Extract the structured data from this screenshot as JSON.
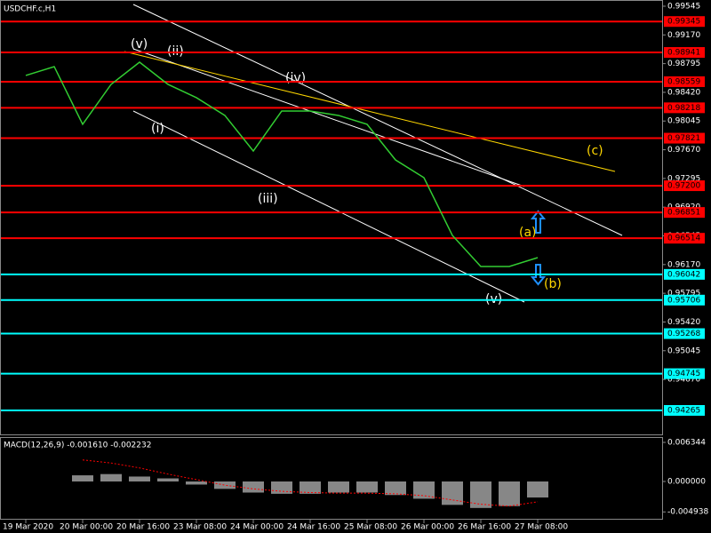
{
  "chart_data": [
    {
      "type": "line",
      "title": "USDCHF.c,H1",
      "categories": [
        "19 Mar 2020",
        null,
        "20 Mar 00:00",
        null,
        "20 Mar 16:00",
        null,
        "23 Mar 08:00",
        null,
        "24 Mar 00:00",
        null,
        "24 Mar 16:00",
        null,
        "25 Mar 08:00",
        null,
        "26 Mar 00:00",
        null,
        "26 Mar 16:00",
        null,
        "27 Mar 08:00"
      ],
      "values": [
        0.9864,
        0.98756,
        0.98002,
        0.98524,
        0.98814,
        0.98524,
        0.9835,
        0.98118,
        0.97653,
        0.98176,
        0.98176,
        0.98118,
        0.98002,
        0.97537,
        0.97305,
        0.96551,
        0.96145,
        0.96145,
        0.96261
      ],
      "color": "#32cd32",
      "ylim": [
        0.9394,
        0.99626
      ],
      "yticks": [
        {
          "value": 0.99545,
          "label": "0.99545"
        },
        {
          "value": 0.9917,
          "label": "0.99170"
        },
        {
          "value": 0.98795,
          "label": "0.98795"
        },
        {
          "value": 0.9842,
          "label": "0.98420"
        },
        {
          "value": 0.98045,
          "label": "0.98045"
        },
        {
          "value": 0.9767,
          "label": "0.97670"
        },
        {
          "value": 0.97295,
          "label": "0.97295"
        },
        {
          "value": 0.9692,
          "label": "0.96920"
        },
        {
          "value": 0.96545,
          "label": "0.96545"
        },
        {
          "value": 0.9617,
          "label": "0.96170"
        },
        {
          "value": 0.95795,
          "label": "0.95795"
        },
        {
          "value": 0.9542,
          "label": "0.95420"
        },
        {
          "value": 0.95045,
          "label": "0.95045"
        },
        {
          "value": 0.9467,
          "label": "0.94670"
        }
      ],
      "level_groups": [
        {
          "color": "#ff0000",
          "levels": [
            {
              "value": 0.99345,
              "label": "0.99345"
            },
            {
              "value": 0.98941,
              "label": "0.98941"
            },
            {
              "value": 0.98559,
              "label": "0.98559"
            },
            {
              "value": 0.98218,
              "label": "0.98218"
            },
            {
              "value": 0.97821,
              "label": "0.97821"
            },
            {
              "value": 0.972,
              "label": "0.97200"
            },
            {
              "value": 0.96851,
              "label": "0.96851"
            },
            {
              "value": 0.96514,
              "label": "0.96514"
            }
          ]
        },
        {
          "color": "#00ffff",
          "levels": [
            {
              "value": 0.96042,
              "label": "0.96042"
            },
            {
              "value": 0.95706,
              "label": "0.95706"
            },
            {
              "value": 0.95268,
              "label": "0.95268"
            },
            {
              "value": 0.94745,
              "label": "0.94745"
            },
            {
              "value": 0.94265,
              "label": "0.94265"
            }
          ]
        }
      ],
      "annotations": [
        "(v)",
        "(ii)",
        "(iv)",
        "(i)",
        "(iii)",
        "(v)",
        "(a)",
        "(b)",
        "(c)"
      ]
    },
    {
      "type": "bar",
      "title": "MACD(12,26,9) -0.001610 -0.002232",
      "series": [
        {
          "color": "#c0c0c0",
          "values": [
            null,
            null,
            0.001,
            0.0012,
            0.0008,
            0.0005,
            -0.0005,
            -0.0012,
            -0.0018,
            -0.002,
            -0.002,
            -0.0018,
            -0.0018,
            -0.0022,
            -0.0028,
            -0.0038,
            -0.0043,
            -0.004,
            -0.0026
          ]
        },
        {
          "color": "#ff0000",
          "values": [
            null,
            null,
            0.0035,
            0.003,
            0.0022,
            0.0012,
            0.0003,
            -0.0006,
            -0.0012,
            -0.0016,
            -0.0018,
            -0.0019,
            -0.0019,
            -0.002,
            -0.0023,
            -0.003,
            -0.0037,
            -0.004,
            -0.0033
          ]
        }
      ],
      "ylim": [
        -0.0062,
        0.007065
      ],
      "yticks": [
        0.006344,
        {
          "value": 0,
          "label": "0.000000"
        },
        -0.004938
      ]
    }
  ]
}
